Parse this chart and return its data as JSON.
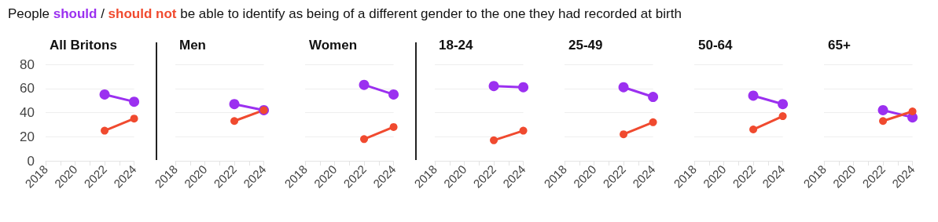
{
  "chart_data": [
    {
      "type": "line",
      "annotations": [
        "People",
        "/",
        "be able to identify as being of a different gender to the one they had recorded at birth"
      ],
      "title": "All Britons",
      "xlim": [
        "2018",
        "2024"
      ],
      "xticks": [
        "2018",
        {
          "value": "2019",
          "label": null
        },
        "2020",
        {
          "value": "2021",
          "label": null
        },
        "2022",
        {
          "value": "2023",
          "label": null
        },
        "2024"
      ],
      "ylim": [
        0,
        80
      ],
      "yticks": [
        0,
        20,
        40,
        60,
        80
      ],
      "grid": "y",
      "marker": "circle",
      "series": [
        {
          "name": "should",
          "color": "#9b30f0",
          "x": [
            "2022",
            "2024"
          ],
          "values": [
            55,
            49
          ]
        },
        {
          "name": "should not",
          "color": "#f04a2f",
          "x": [
            "2022",
            "2024"
          ],
          "values": [
            25,
            35
          ]
        }
      ]
    },
    {
      "type": "line",
      "title": "Men",
      "tick_labels": "x",
      "xlim": [
        "2018",
        "2024"
      ],
      "xticks": [
        "2018",
        {
          "value": "2019",
          "label": null
        },
        "2020",
        {
          "value": "2021",
          "label": null
        },
        "2022",
        {
          "value": "2023",
          "label": null
        },
        "2024"
      ],
      "ylim": [
        0,
        80
      ],
      "yticks": [
        0,
        20,
        40,
        60,
        80
      ],
      "grid": "y",
      "marker": "circle",
      "series": [
        {
          "color": "#9b30f0",
          "x": [
            "2022",
            "2024"
          ],
          "values": [
            47,
            42
          ]
        },
        {
          "color": "#f04a2f",
          "x": [
            "2022",
            "2024"
          ],
          "values": [
            33,
            42
          ]
        }
      ]
    },
    {
      "type": "line",
      "title": "Women",
      "tick_labels": "x",
      "xlim": [
        "2018",
        "2024"
      ],
      "xticks": [
        "2018",
        {
          "value": "2019",
          "label": null
        },
        "2020",
        {
          "value": "2021",
          "label": null
        },
        "2022",
        {
          "value": "2023",
          "label": null
        },
        "2024"
      ],
      "ylim": [
        0,
        80
      ],
      "yticks": [
        0,
        20,
        40,
        60,
        80
      ],
      "grid": "y",
      "marker": "circle",
      "series": [
        {
          "color": "#9b30f0",
          "x": [
            "2022",
            "2024"
          ],
          "values": [
            63,
            55
          ]
        },
        {
          "color": "#f04a2f",
          "x": [
            "2022",
            "2024"
          ],
          "values": [
            18,
            28
          ]
        }
      ]
    },
    {
      "type": "line",
      "title": "18-24",
      "tick_labels": "x",
      "xlim": [
        "2018",
        "2024"
      ],
      "xticks": [
        "2018",
        {
          "value": "2019",
          "label": null
        },
        "2020",
        {
          "value": "2021",
          "label": null
        },
        "2022",
        {
          "value": "2023",
          "label": null
        },
        "2024"
      ],
      "ylim": [
        0,
        80
      ],
      "yticks": [
        0,
        20,
        40,
        60,
        80
      ],
      "grid": "y",
      "marker": "circle",
      "series": [
        {
          "color": "#9b30f0",
          "x": [
            "2022",
            "2024"
          ],
          "values": [
            62,
            61
          ]
        },
        {
          "color": "#f04a2f",
          "x": [
            "2022",
            "2024"
          ],
          "values": [
            17,
            25
          ]
        }
      ]
    },
    {
      "type": "line",
      "title": "25-49",
      "tick_labels": "x",
      "xlim": [
        "2018",
        "2024"
      ],
      "xticks": [
        "2018",
        {
          "value": "2019",
          "label": null
        },
        "2020",
        {
          "value": "2021",
          "label": null
        },
        "2022",
        {
          "value": "2023",
          "label": null
        },
        "2024"
      ],
      "ylim": [
        0,
        80
      ],
      "yticks": [
        0,
        20,
        40,
        60,
        80
      ],
      "grid": "y",
      "marker": "circle",
      "series": [
        {
          "color": "#9b30f0",
          "x": [
            "2022",
            "2024"
          ],
          "values": [
            61,
            53
          ]
        },
        {
          "color": "#f04a2f",
          "x": [
            "2022",
            "2024"
          ],
          "values": [
            22,
            32
          ]
        }
      ]
    },
    {
      "type": "line",
      "title": "50-64",
      "tick_labels": "x",
      "xlim": [
        "2018",
        "2024"
      ],
      "xticks": [
        "2018",
        {
          "value": "2019",
          "label": null
        },
        "2020",
        {
          "value": "2021",
          "label": null
        },
        "2022",
        {
          "value": "2023",
          "label": null
        },
        "2024"
      ],
      "ylim": [
        0,
        80
      ],
      "yticks": [
        0,
        20,
        40,
        60,
        80
      ],
      "grid": "y",
      "marker": "circle",
      "series": [
        {
          "color": "#9b30f0",
          "x": [
            "2022",
            "2024"
          ],
          "values": [
            54,
            47
          ]
        },
        {
          "color": "#f04a2f",
          "x": [
            "2022",
            "2024"
          ],
          "values": [
            26,
            37
          ]
        }
      ]
    },
    {
      "type": "line",
      "title": "65+",
      "tick_labels": "x",
      "xlim": [
        "2018",
        "2024"
      ],
      "xticks": [
        "2018",
        {
          "value": "2019",
          "label": null
        },
        "2020",
        {
          "value": "2021",
          "label": null
        },
        "2022",
        {
          "value": "2023",
          "label": null
        },
        "2024"
      ],
      "ylim": [
        0,
        80
      ],
      "yticks": [
        0,
        20,
        40,
        60,
        80
      ],
      "grid": "y",
      "marker": "circle",
      "series": [
        {
          "color": "#9b30f0",
          "x": [
            "2022",
            "2024"
          ],
          "values": [
            42,
            36
          ]
        },
        {
          "color": "#f04a2f",
          "x": [
            "2022",
            "2024"
          ],
          "values": [
            33,
            41
          ]
        }
      ]
    }
  ]
}
